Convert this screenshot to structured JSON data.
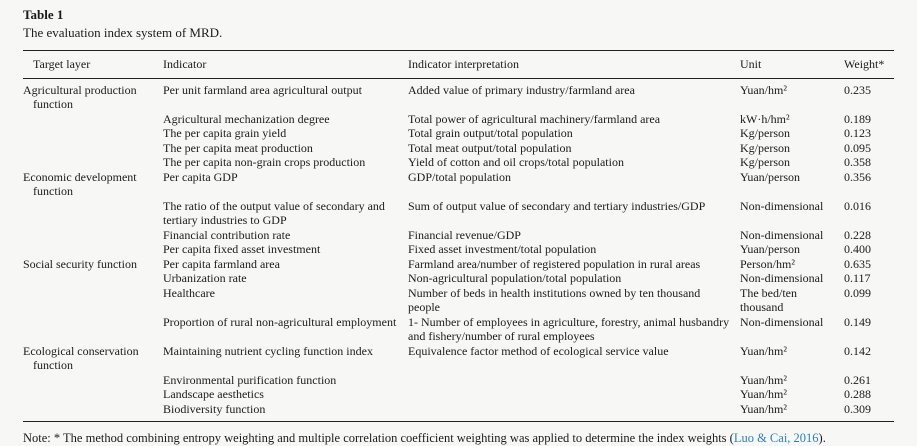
{
  "page": {
    "background_color": "#f7f7f5",
    "text_color": "#1b1b1b",
    "link_color": "#2e7fbe"
  },
  "table": {
    "label": "Table 1",
    "caption": "The evaluation index system of MRD.",
    "columns": [
      "Target layer",
      "Indicator",
      "Indicator interpretation",
      "Unit",
      "Weight*"
    ],
    "rows": [
      {
        "target": "Agricultural production function",
        "indicator": "Per unit farmland area agricultural output",
        "interpretation": "Added value of primary industry/farmland area",
        "unit": "Yuan/hm²",
        "weight": "0.235"
      },
      {
        "target": "",
        "indicator": "Agricultural mechanization degree",
        "interpretation": "Total power of agricultural machinery/farmland area",
        "unit": "kW·h/hm²",
        "weight": "0.189"
      },
      {
        "target": "",
        "indicator": "The per capita grain yield",
        "interpretation": "Total grain output/total population",
        "unit": "Kg/person",
        "weight": "0.123"
      },
      {
        "target": "",
        "indicator": "The per capita meat production",
        "interpretation": "Total meat output/total population",
        "unit": "Kg/person",
        "weight": "0.095"
      },
      {
        "target": "",
        "indicator": "The per capita non-grain crops production",
        "interpretation": "Yield of cotton and oil crops/total population",
        "unit": "Kg/person",
        "weight": "0.358"
      },
      {
        "target": "Economic development function",
        "indicator": "Per capita GDP",
        "interpretation": "GDP/total population",
        "unit": "Yuan/person",
        "weight": "0.356"
      },
      {
        "target": "",
        "indicator": "The ratio of the output value of secondary and tertiary industries to GDP",
        "interpretation": "Sum of output value of secondary and tertiary industries/GDP",
        "unit": "Non-dimensional",
        "weight": "0.016"
      },
      {
        "target": "",
        "indicator": "Financial contribution rate",
        "interpretation": "Financial revenue/GDP",
        "unit": "Non-dimensional",
        "weight": "0.228"
      },
      {
        "target": "",
        "indicator": "Per capita fixed asset investment",
        "interpretation": "Fixed asset investment/total population",
        "unit": "Yuan/person",
        "weight": "0.400"
      },
      {
        "target": "Social security function",
        "indicator": "Per capita farmland area",
        "interpretation": "Farmland area/number of registered population in rural areas",
        "unit": "Person/hm²",
        "weight": "0.635"
      },
      {
        "target": "",
        "indicator": "Urbanization rate",
        "interpretation": "Non-agricultural population/total population",
        "unit": "Non-dimensional",
        "weight": "0.117"
      },
      {
        "target": "",
        "indicator": "Healthcare",
        "interpretation": "Number of beds in health institutions owned by ten thousand people",
        "unit": "The bed/ten thousand",
        "weight": "0.099"
      },
      {
        "target": "",
        "indicator": "Proportion of rural non-agricultural employment",
        "interpretation": "1- Number of employees in agriculture, forestry, animal husbandry and fishery/number of rural employees",
        "unit": "Non-dimensional",
        "weight": "0.149"
      },
      {
        "target": "Ecological conservation function",
        "indicator": "Maintaining nutrient cycling function index",
        "interpretation": "Equivalence factor method of ecological service value",
        "unit": "Yuan/hm²",
        "weight": "0.142"
      },
      {
        "target": "",
        "indicator": "Environmental purification function",
        "interpretation": "",
        "unit": "Yuan/hm²",
        "weight": "0.261"
      },
      {
        "target": "",
        "indicator": "Landscape aesthetics",
        "interpretation": "",
        "unit": "Yuan/hm²",
        "weight": "0.288"
      },
      {
        "target": "",
        "indicator": "Biodiversity function",
        "interpretation": "",
        "unit": "Yuan/hm²",
        "weight": "0.309"
      }
    ]
  },
  "note": {
    "prefix": "Note: * The method combining entropy weighting and multiple correlation coefficient weighting was applied to determine the index weights (",
    "link": "Luo & Cai, 2016",
    "suffix": ")."
  }
}
